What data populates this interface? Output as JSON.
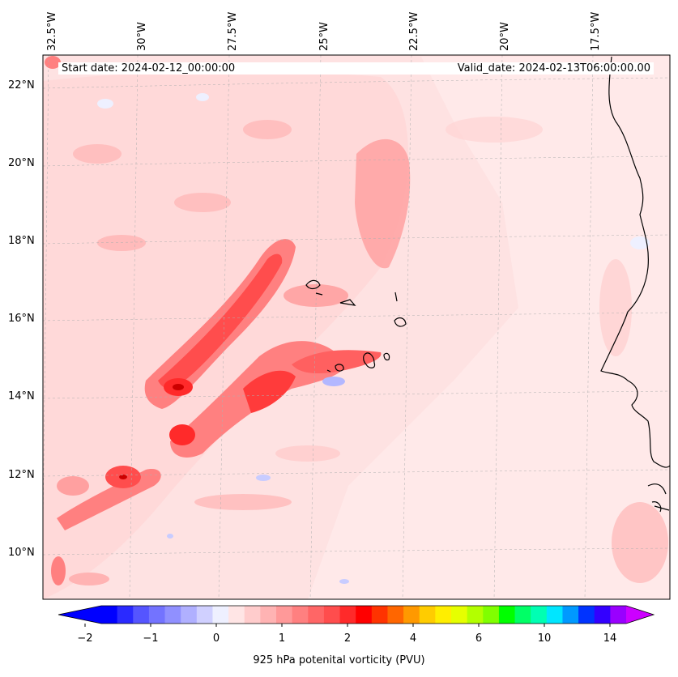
{
  "map": {
    "annotation_start": "Start date: 2024-02-12_00:00:00",
    "annotation_valid": "Valid_date: 2024-02-13T06:00:00.00",
    "lon_ticks": [
      "32.5°W",
      "30°W",
      "27.5°W",
      "25°W",
      "22.5°W",
      "20°W",
      "17.5°W"
    ],
    "lat_ticks": [
      "22°N",
      "20°N",
      "18°N",
      "16°N",
      "14°N",
      "12°N",
      "10°N"
    ],
    "field": "925 hPa potential vorticity",
    "background_color": "#fee2e2"
  },
  "colorbar": {
    "label": "925 hPa potenital vorticity (PVU)",
    "tick_labels": [
      "−2",
      "−1",
      "0",
      "1",
      "2",
      "4",
      "6",
      "10",
      "14"
    ],
    "colors": [
      "#0000ff",
      "#2a2aff",
      "#5555ff",
      "#7373ff",
      "#9090ff",
      "#b0b0ff",
      "#d0d0ff",
      "#eef0ff",
      "#ffe5e5",
      "#ffcccc",
      "#ffb3b3",
      "#ff9999",
      "#ff8080",
      "#ff6666",
      "#ff4d4d",
      "#ff2a2a",
      "#ff0000",
      "#ff3300",
      "#ff6600",
      "#ff9900",
      "#ffcc00",
      "#ffee00",
      "#e6ff00",
      "#b3ff00",
      "#80ff00",
      "#00ff00",
      "#00ff66",
      "#00ffb3",
      "#00e6ff",
      "#0099ff",
      "#0033ff",
      "#3300ff",
      "#9900ff"
    ],
    "extend_low_color": "#0000ff",
    "extend_high_color": "#cc00ff"
  }
}
